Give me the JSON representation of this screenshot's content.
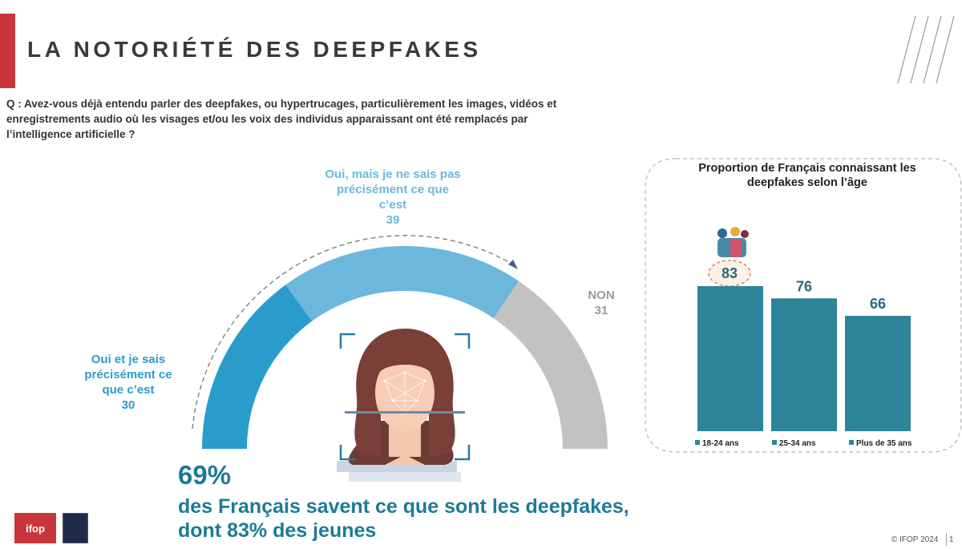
{
  "header": {
    "title": "LA NOTORIÉTÉ DES DEEPFAKES"
  },
  "question": "Q : Avez-vous déjà entendu parler des deepfakes, ou hypertrucages, particulièrement les images, vidéos et enregistrements audio où les visages et/ou les voix des individus apparaissant ont été remplacés par l’intelligence artificielle ?",
  "colors": {
    "accent_red": "#c8363b",
    "dark_blue": "#1e7a97",
    "blue": "#2a9ccc",
    "light_blue": "#6bb8dc",
    "grey": "#c2c2c2",
    "bar": "#2e8499"
  },
  "gauge_labels": {
    "oui_sais": [
      "Oui et je sais",
      "précisément ce",
      "que c’est",
      "30"
    ],
    "oui_pas": [
      "Oui, mais je ne sais pas",
      "précisément ce que",
      "c’est",
      "39"
    ],
    "non": [
      "NON",
      "31"
    ]
  },
  "highlight": {
    "pct": "69%",
    "line1": "des Français savent ce que sont les deepfakes,",
    "line2": "dont 83% des jeunes"
  },
  "footer": {
    "logo": "ifop",
    "copyright": "© IFOP 2024",
    "page": "1"
  },
  "chart_data": [
    {
      "type": "pie",
      "subtype": "semi-donut gauge",
      "categories": [
        "Oui et je sais précisément ce que c’est",
        "Oui, mais je ne sais pas précisément ce que c’est",
        "NON"
      ],
      "values": [
        30,
        39,
        31
      ],
      "colors": [
        "#2a9ccc",
        "#6bb8dc",
        "#c2c2c2"
      ]
    },
    {
      "type": "bar",
      "title": "Proportion de Français connaissant les deepfakes selon l’âge",
      "categories": [
        "18-24 ans",
        "25-34 ans",
        "Plus de 35 ans"
      ],
      "values": [
        83,
        76,
        66
      ],
      "ylim": [
        0,
        100
      ],
      "grid": false,
      "legend_position": "bottom",
      "color": "#2e8499"
    }
  ]
}
